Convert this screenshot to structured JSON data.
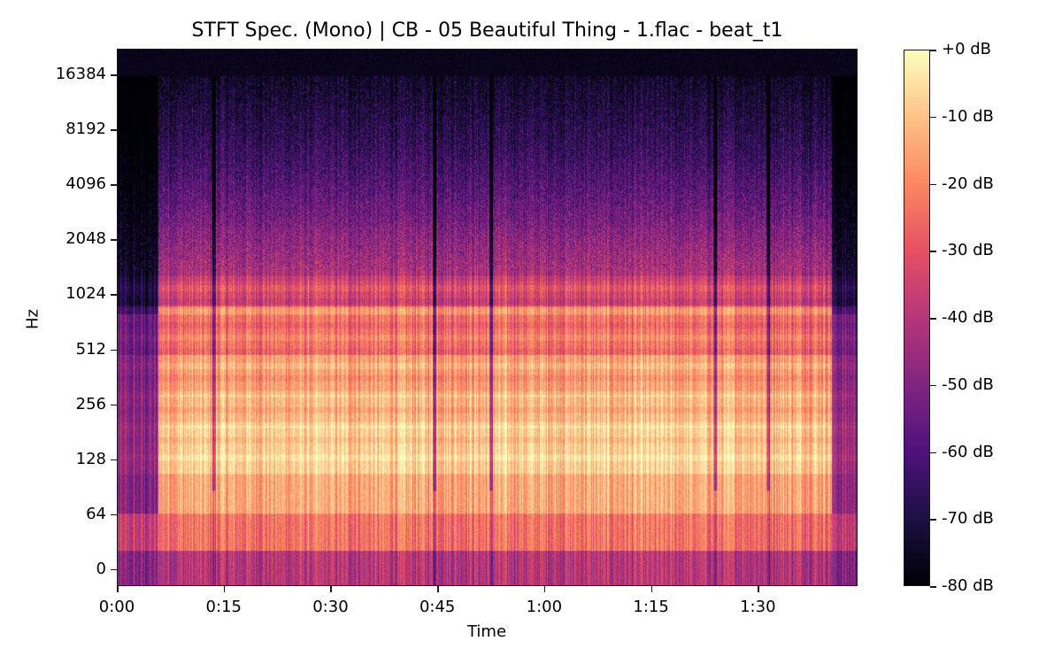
{
  "chart_data": {
    "type": "heatmap",
    "title": "STFT Spec. (Mono) | CB - 05 Beautiful Thing - 1.flac - beat_t1",
    "xlabel": "Time",
    "ylabel": "Hz",
    "x_ticks": [
      {
        "label": "0:00",
        "seconds": 0
      },
      {
        "label": "0:15",
        "seconds": 15
      },
      {
        "label": "0:30",
        "seconds": 30
      },
      {
        "label": "0:45",
        "seconds": 45
      },
      {
        "label": "1:00",
        "seconds": 60
      },
      {
        "label": "1:15",
        "seconds": 75
      },
      {
        "label": "1:30",
        "seconds": 90
      }
    ],
    "x_range_seconds": [
      0,
      104
    ],
    "y_scale": "log2",
    "y_ticks": [
      "16384",
      "8192",
      "4096",
      "2048",
      "1024",
      "512",
      "256",
      "128",
      "64",
      "0"
    ],
    "colorbar": {
      "colormap": "magma",
      "range_db": [
        -80,
        0
      ],
      "ticks": [
        "+0 dB",
        "-10 dB",
        "-20 dB",
        "-30 dB",
        "-40 dB",
        "-50 dB",
        "-60 dB",
        "-70 dB",
        "-80 dB"
      ]
    },
    "segments_seconds": [
      {
        "start": 0,
        "end": 5.7,
        "level": "quiet intro"
      },
      {
        "start": 5.7,
        "end": 13.5,
        "level": "loud"
      },
      {
        "start": 13.5,
        "end": 44.5,
        "level": "loud"
      },
      {
        "start": 44.5,
        "end": 52.5,
        "level": "loud"
      },
      {
        "start": 52.5,
        "end": 84,
        "level": "loud"
      },
      {
        "start": 84,
        "end": 91.5,
        "level": "loud"
      },
      {
        "start": 91.5,
        "end": 100.5,
        "level": "loud"
      },
      {
        "start": 100.5,
        "end": 104,
        "level": "fade out"
      }
    ],
    "notes": "Energy concentrated 64-512 Hz (approx -5 to -20 dB), harmonic band near 800 Hz, high frequencies above 4 kHz below -60 dB; breaks near 0:13, 0:44, 0:52, 1:24, 1:31."
  }
}
